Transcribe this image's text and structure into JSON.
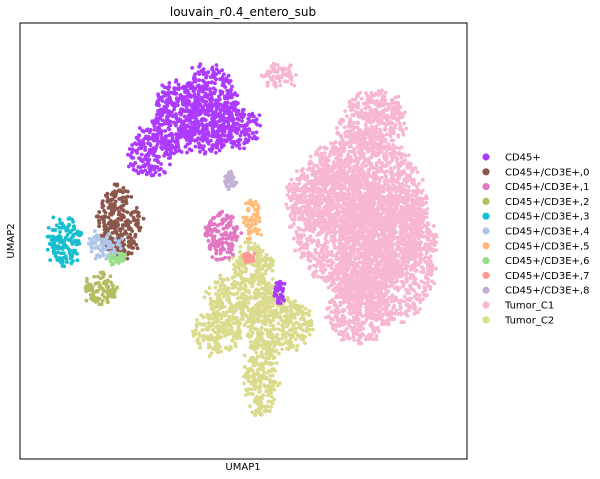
{
  "chart_data": {
    "type": "scatter",
    "title": "louvain_r0.4_entero_sub",
    "xlabel": "UMAP1",
    "ylabel": "UMAP2",
    "ticks": "none",
    "grid": false,
    "legend": {
      "placement": "right",
      "entries": [
        {
          "name": "CD45+",
          "color": "#ad3bff"
        },
        {
          "name": "CD45+/CD3E+,0",
          "color": "#8c564b"
        },
        {
          "name": "CD45+/CD3E+,1",
          "color": "#e377c2"
        },
        {
          "name": "CD45+/CD3E+,2",
          "color": "#b5bd61"
        },
        {
          "name": "CD45+/CD3E+,3",
          "color": "#17becf"
        },
        {
          "name": "CD45+/CD3E+,4",
          "color": "#aec7e8"
        },
        {
          "name": "CD45+/CD3E+,5",
          "color": "#ffbb78"
        },
        {
          "name": "CD45+/CD3E+,6",
          "color": "#98df8a"
        },
        {
          "name": "CD45+/CD3E+,7",
          "color": "#ff9896"
        },
        {
          "name": "CD45+/CD3E+,8",
          "color": "#c5b0d5"
        },
        {
          "name": "Tumor_C1",
          "color": "#f7b6d2"
        },
        {
          "name": "Tumor_C2",
          "color": "#dbdb8d"
        }
      ]
    },
    "clusters": [
      {
        "series": "Tumor_C1",
        "blobs": [
          [
            0.76,
            0.56,
            0.16,
            0.2
          ],
          [
            0.82,
            0.47,
            0.12,
            0.17
          ],
          [
            0.7,
            0.6,
            0.11,
            0.09
          ],
          [
            0.79,
            0.77,
            0.08,
            0.08
          ],
          [
            0.58,
            0.88,
            0.04,
            0.03
          ],
          [
            0.76,
            0.34,
            0.08,
            0.08
          ]
        ]
      },
      {
        "series": "Tumor_C2",
        "blobs": [
          [
            0.5,
            0.37,
            0.09,
            0.06
          ],
          [
            0.58,
            0.31,
            0.08,
            0.07
          ],
          [
            0.44,
            0.29,
            0.06,
            0.05
          ],
          [
            0.54,
            0.19,
            0.04,
            0.1
          ],
          [
            0.52,
            0.45,
            0.05,
            0.05
          ]
        ]
      },
      {
        "series": "CD45+",
        "blobs": [
          [
            0.35,
            0.78,
            0.06,
            0.09
          ],
          [
            0.42,
            0.8,
            0.07,
            0.11
          ],
          [
            0.48,
            0.76,
            0.06,
            0.05
          ],
          [
            0.29,
            0.7,
            0.05,
            0.06
          ],
          [
            0.58,
            0.38,
            0.01,
            0.03
          ]
        ]
      },
      {
        "series": "CD45+/CD3E+,0",
        "blobs": [
          [
            0.22,
            0.54,
            0.05,
            0.09
          ]
        ]
      },
      {
        "series": "CD45+/CD3E+,1",
        "blobs": [
          [
            0.45,
            0.51,
            0.04,
            0.06
          ]
        ]
      },
      {
        "series": "CD45+/CD3E+,2",
        "blobs": [
          [
            0.18,
            0.39,
            0.04,
            0.04
          ]
        ]
      },
      {
        "series": "CD45+/CD3E+,3",
        "blobs": [
          [
            0.1,
            0.5,
            0.04,
            0.06
          ]
        ]
      },
      {
        "series": "CD45+/CD3E+,4",
        "blobs": [
          [
            0.19,
            0.49,
            0.04,
            0.03
          ]
        ]
      },
      {
        "series": "CD45+/CD3E+,5",
        "blobs": [
          [
            0.52,
            0.55,
            0.02,
            0.05
          ]
        ]
      },
      {
        "series": "CD45+/CD3E+,6",
        "blobs": [
          [
            0.22,
            0.46,
            0.02,
            0.01
          ]
        ]
      },
      {
        "series": "CD45+/CD3E+,7",
        "blobs": [
          [
            0.51,
            0.46,
            0.01,
            0.01
          ]
        ]
      },
      {
        "series": "CD45+/CD3E+,8",
        "blobs": [
          [
            0.47,
            0.64,
            0.01,
            0.02
          ]
        ]
      }
    ]
  }
}
